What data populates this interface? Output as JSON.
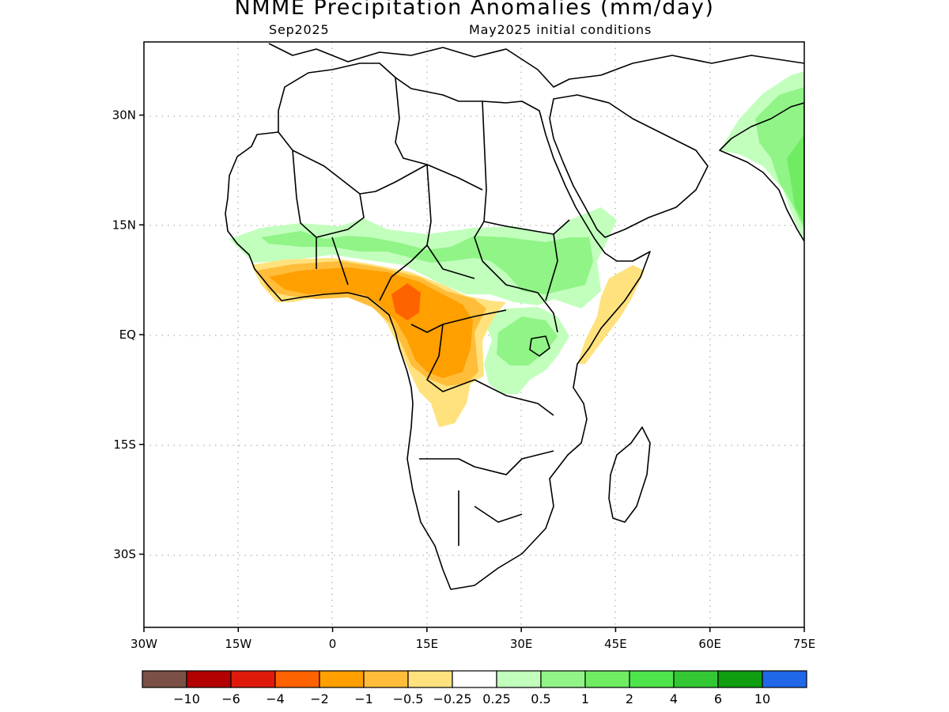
{
  "title": "NMME Precipitation Anomalies (mm/day)",
  "subtitle_left": "Sep2025",
  "subtitle_right": "May2025 initial conditions",
  "map": {
    "lon_range": [
      -30,
      75
    ],
    "lat_range": [
      -40,
      40
    ],
    "lat_ticks": [
      {
        "value": 30,
        "label": "30N"
      },
      {
        "value": 15,
        "label": "15N"
      },
      {
        "value": 0,
        "label": "EQ"
      },
      {
        "value": -15,
        "label": "15S"
      },
      {
        "value": -30,
        "label": "30S"
      }
    ],
    "lon_ticks": [
      {
        "value": -30,
        "label": "30W"
      },
      {
        "value": -15,
        "label": "15W"
      },
      {
        "value": 0,
        "label": "0"
      },
      {
        "value": 15,
        "label": "15E"
      },
      {
        "value": 30,
        "label": "30E"
      },
      {
        "value": 45,
        "label": "45E"
      },
      {
        "value": 60,
        "label": "60E"
      },
      {
        "value": 75,
        "label": "75E"
      }
    ]
  },
  "colorbar": {
    "colors": [
      "#7b5046",
      "#b30000",
      "#e01a0b",
      "#ff6300",
      "#ff9f00",
      "#ffbd3a",
      "#ffe27e",
      "#ffffff",
      "#c2ffbd",
      "#90f486",
      "#70ec63",
      "#4de54b",
      "#34c734",
      "#0f9e10",
      "#2168e8"
    ],
    "labels": [
      "−10",
      "−6",
      "−4",
      "−2",
      "−1",
      "−0.5",
      "−0.25",
      "0.25",
      "0.5",
      "1",
      "2",
      "4",
      "6",
      "10"
    ]
  }
}
